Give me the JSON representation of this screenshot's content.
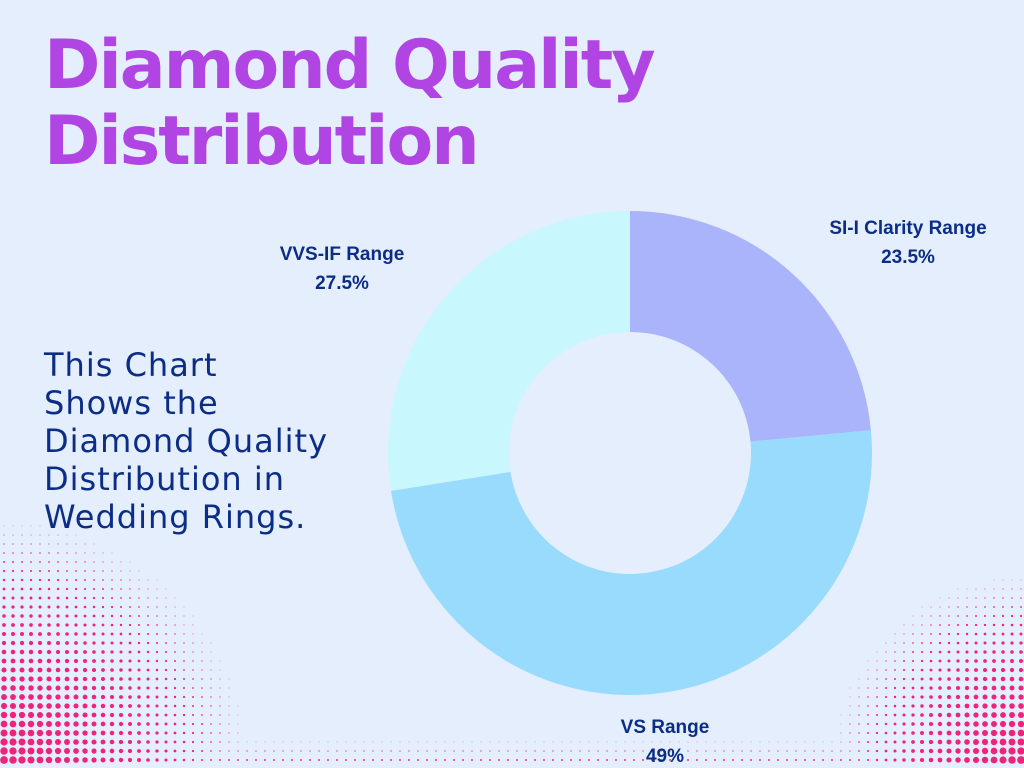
{
  "title": {
    "line1": "Diamond Quality",
    "line2": "Distribution"
  },
  "description": {
    "line1": "This Chart",
    "line2": "Shows the",
    "line3": "Diamond Quality",
    "line4": "Distribution in",
    "line5": "Wedding Rings."
  },
  "colors": {
    "background": "#e4eefc",
    "title": "#b145e3",
    "text": "#0b2d86",
    "dots": "#f0237a"
  },
  "chart_data": {
    "type": "pie",
    "variant": "donut",
    "start": "12 o'clock, clockwise",
    "slices": [
      {
        "label": "SI-I Clarity Range",
        "value": 23.5,
        "display": "23.5%",
        "color": "#aab4fb"
      },
      {
        "label": "VS Range",
        "value": 49,
        "display": "49%",
        "color": "#98dbfd"
      },
      {
        "label": "VVS-IF Range",
        "value": 27.5,
        "display": "27.5%",
        "color": "#c8f7fd"
      }
    ]
  }
}
